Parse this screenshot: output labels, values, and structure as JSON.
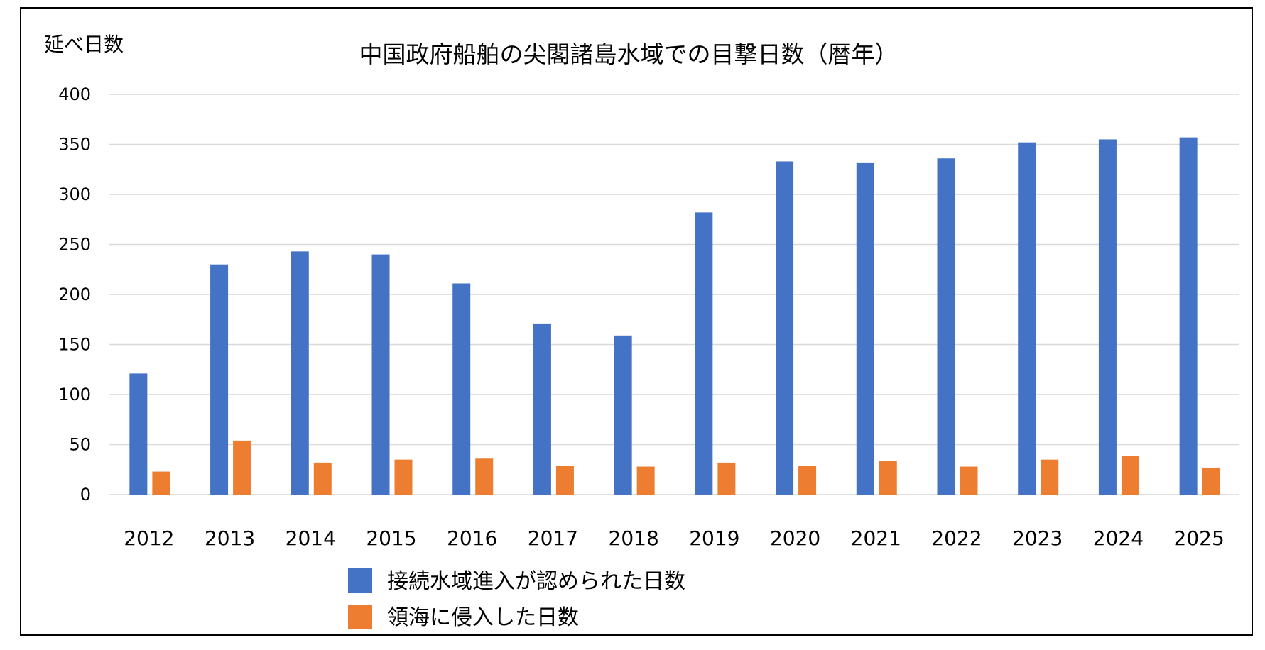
{
  "chart_data": {
    "type": "bar",
    "title": "中国政府船舶の尖閣諸島水域での目撃日数（暦年）",
    "ylabel": "延べ日数",
    "xlabel": "",
    "ylim": [
      0,
      400
    ],
    "yticks": [
      0,
      50,
      100,
      150,
      200,
      250,
      300,
      350,
      400
    ],
    "grid": true,
    "legend_position": "bottom",
    "categories": [
      "2012",
      "2013",
      "2014",
      "2015",
      "2016",
      "2017",
      "2018",
      "2019",
      "2020",
      "2021",
      "2022",
      "2023",
      "2024",
      "2025"
    ],
    "series": [
      {
        "name": "接続水域進入が認められた日数",
        "color": "#4472c4",
        "values": [
          121,
          230,
          243,
          240,
          211,
          171,
          159,
          282,
          333,
          332,
          336,
          352,
          355,
          357
        ]
      },
      {
        "name": "領海に侵入した日数",
        "color": "#ed7d31",
        "values": [
          23,
          54,
          32,
          35,
          36,
          29,
          28,
          32,
          29,
          34,
          28,
          35,
          39,
          27
        ]
      }
    ]
  }
}
